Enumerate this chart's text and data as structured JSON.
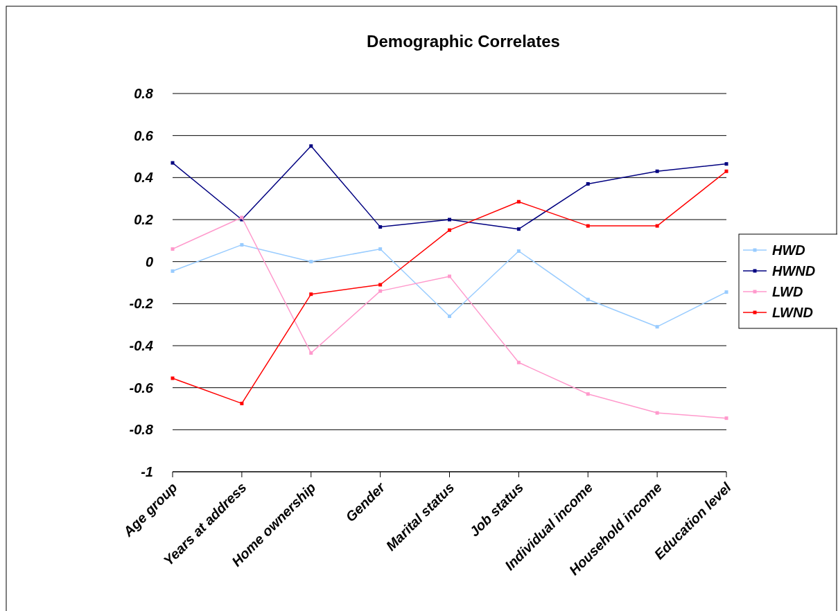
{
  "chart_data": {
    "type": "line",
    "title": "Demographic Correlates",
    "categories": [
      "Age group",
      "Years at address",
      "Home ownership",
      "Gender",
      "Marital status",
      "Job status",
      "Individual income",
      "Household income",
      "Education level"
    ],
    "series": [
      {
        "name": "HWD",
        "color": "#99ccff",
        "values": [
          -0.045,
          0.08,
          0.0,
          0.06,
          -0.26,
          0.05,
          -0.18,
          -0.31,
          -0.145
        ]
      },
      {
        "name": "HWND",
        "color": "#000080",
        "values": [
          0.47,
          0.2,
          0.55,
          0.165,
          0.2,
          0.155,
          0.37,
          0.43,
          0.465
        ]
      },
      {
        "name": "LWD",
        "color": "#ff99cc",
        "values": [
          0.06,
          0.21,
          -0.435,
          -0.14,
          -0.07,
          -0.48,
          -0.63,
          -0.72,
          -0.745
        ]
      },
      {
        "name": "LWND",
        "color": "#ff0000",
        "values": [
          -0.555,
          -0.675,
          -0.155,
          -0.11,
          0.15,
          0.285,
          0.17,
          0.17,
          0.43
        ]
      }
    ],
    "ylim": [
      -1,
      0.8
    ],
    "yticks": [
      -1,
      -0.8,
      -0.6,
      -0.4,
      -0.2,
      0,
      0.2,
      0.4,
      0.6,
      0.8
    ],
    "grid": "y",
    "legend": "right",
    "marker": "square",
    "line_style": "solid"
  }
}
